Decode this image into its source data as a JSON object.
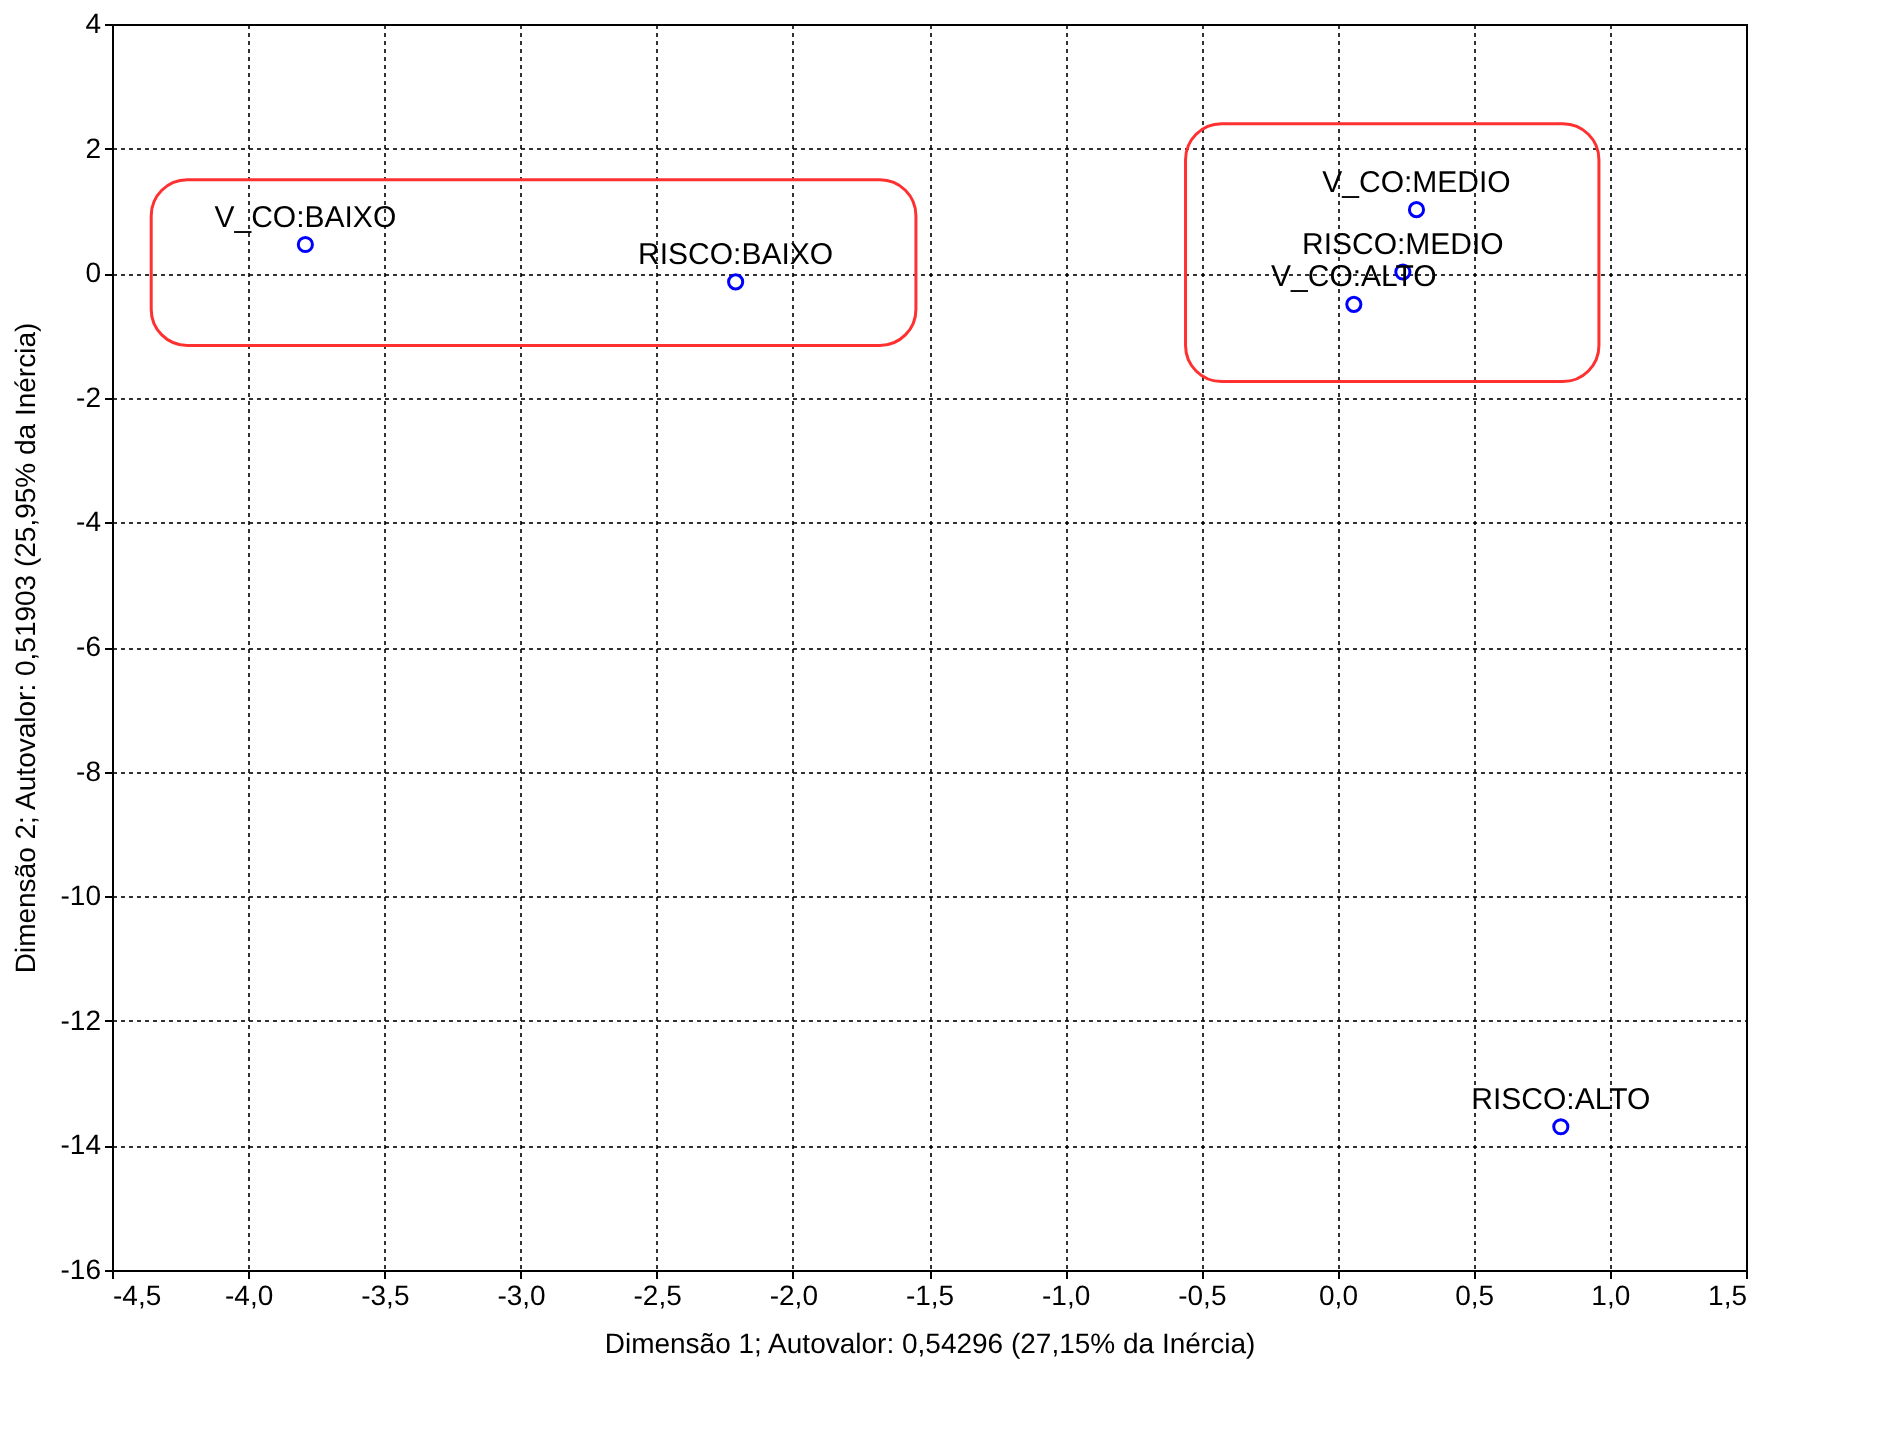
{
  "chart_data": {
    "type": "scatter",
    "xlabel": "Dimensão 1; Autovalor: 0,54296 (27,15% da Inércia)",
    "ylabel": "Dimensão 2; Autovalor: 0,51903 (25,95% da Inércia)",
    "series": [
      {
        "color": "#0000ff",
        "x": [
          -3.79,
          -2.21,
          0.29,
          0.24,
          0.06,
          0.82
        ],
        "values": [
          0.46,
          -0.14,
          1.02,
          0.02,
          -0.5,
          -13.7
        ]
      }
    ],
    "annotations": [
      {
        "text": "V_CO:BAIXO",
        "x": -3.79,
        "y": 0.46
      },
      {
        "text": "RISCO:BAIXO",
        "x": -2.21,
        "y": -0.14
      },
      {
        "text": "V_CO:MEDIO",
        "x": 0.29,
        "y": 1.02
      },
      {
        "text": "RISCO:MEDIO",
        "x": 0.24,
        "y": 0.02
      },
      {
        "text": "V_CO:ALTO",
        "x": 0.06,
        "y": -0.5
      },
      {
        "text": "RISCO:ALTO",
        "x": 0.82,
        "y": -13.7
      }
    ],
    "xlim": [
      -4.5,
      1.5
    ],
    "xticks": [
      {
        "value": -4.5,
        "label": "-4,5"
      },
      {
        "value": -4,
        "label": "-4,0"
      },
      {
        "value": -3.5,
        "label": "-3,5"
      },
      {
        "value": -3,
        "label": "-3,0"
      },
      {
        "value": -2.5,
        "label": "-2,5"
      },
      {
        "value": -2,
        "label": "-2,0"
      },
      {
        "value": -1.5,
        "label": "-1,5"
      },
      {
        "value": -1,
        "label": "-1,0"
      },
      {
        "value": -0.5,
        "label": "-0,5"
      },
      {
        "value": 0,
        "label": "0,0"
      },
      {
        "value": 0.5,
        "label": "0,5"
      },
      {
        "value": 1,
        "label": "1,0"
      },
      {
        "value": 1.5,
        "label": "1,5"
      }
    ],
    "ylim": [
      -16,
      4
    ],
    "yticks": [
      -16,
      -14,
      -12,
      -10,
      -8,
      -6,
      -4,
      -2,
      0,
      2,
      4
    ],
    "grid": true,
    "marker": "circle"
  }
}
